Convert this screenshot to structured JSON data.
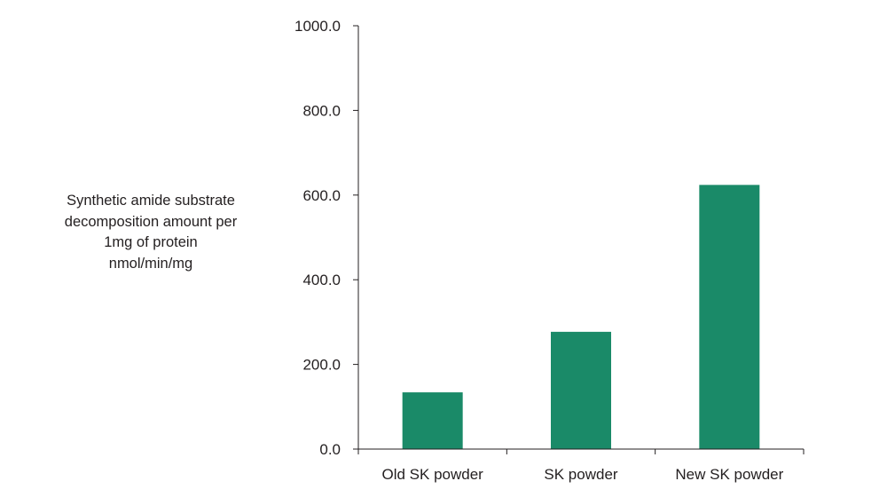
{
  "chart_data": {
    "type": "bar",
    "categories": [
      "Old SK powder",
      "SK powder",
      "New SK powder"
    ],
    "values": [
      134,
      277,
      624
    ],
    "ylabel_lines": [
      "Synthetic amide substrate",
      "decomposition amount per",
      "1mg of protein",
      "nmol/min/mg"
    ],
    "ylim": [
      0,
      1000
    ],
    "yticks": [
      "0.0",
      "200.0",
      "400.0",
      "600.0",
      "800.0",
      "1000.0"
    ],
    "grid": false,
    "legend": "none",
    "bar_color": "#1a8a68",
    "axis_color": "#231f20"
  }
}
